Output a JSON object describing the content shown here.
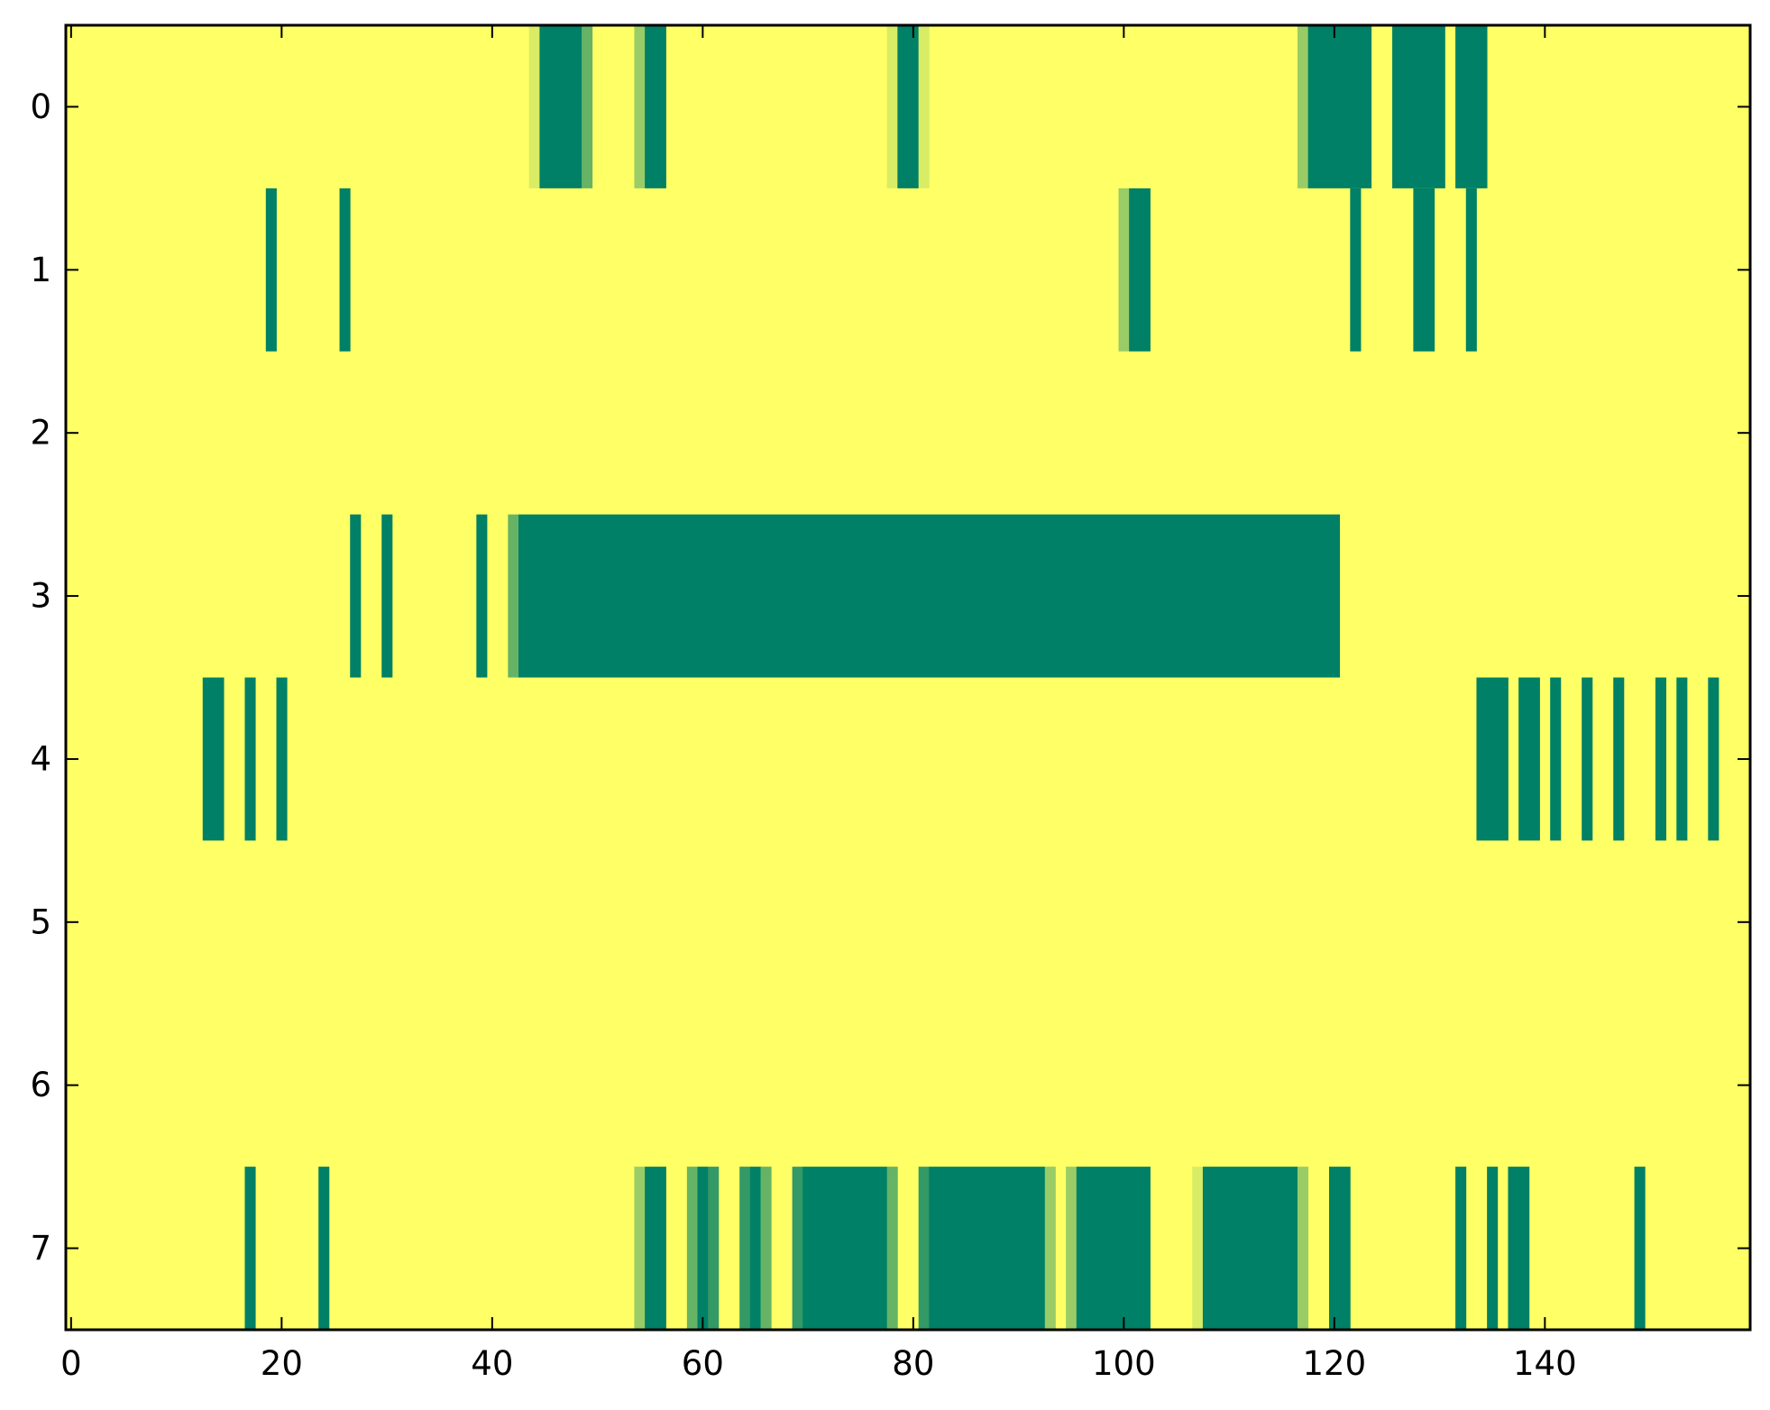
{
  "chart_data": {
    "type": "heatmap",
    "title": "",
    "xlabel": "",
    "ylabel": "",
    "xlim": [
      -0.5,
      159.5
    ],
    "ylim": [
      7.5,
      -0.5
    ],
    "x_ticks": [
      0,
      20,
      40,
      60,
      80,
      100,
      120,
      140
    ],
    "x_tick_labels": [
      "0",
      "20",
      "40",
      "60",
      "80",
      "100",
      "120",
      "140"
    ],
    "y_ticks": [
      0,
      1,
      2,
      3,
      4,
      5,
      6,
      7
    ],
    "y_tick_labels": [
      "0",
      "1",
      "2",
      "3",
      "4",
      "5",
      "6",
      "7"
    ],
    "grid": false,
    "background_color": "#ffff66",
    "colorscale": [
      "#ffff66",
      "#008066"
    ],
    "columns": 160,
    "rows": [
      {
        "row": 0,
        "cells": [
          {
            "start": 44,
            "end": 44,
            "value": 0.15
          },
          {
            "start": 45,
            "end": 48,
            "value": 1
          },
          {
            "start": 49,
            "end": 49,
            "value": 0.6
          },
          {
            "start": 54,
            "end": 54,
            "value": 0.4
          },
          {
            "start": 55,
            "end": 56,
            "value": 1
          },
          {
            "start": 78,
            "end": 78,
            "value": 0.15
          },
          {
            "start": 79,
            "end": 80,
            "value": 1
          },
          {
            "start": 81,
            "end": 81,
            "value": 0.15
          },
          {
            "start": 117,
            "end": 117,
            "value": 0.4
          },
          {
            "start": 118,
            "end": 123,
            "value": 1
          },
          {
            "start": 126,
            "end": 130,
            "value": 1
          },
          {
            "start": 132,
            "end": 134,
            "value": 1
          }
        ]
      },
      {
        "row": 1,
        "cells": [
          {
            "start": 19,
            "end": 19,
            "value": 1
          },
          {
            "start": 26,
            "end": 26,
            "value": 1
          },
          {
            "start": 100,
            "end": 100,
            "value": 0.4
          },
          {
            "start": 101,
            "end": 102,
            "value": 1
          },
          {
            "start": 122,
            "end": 122,
            "value": 1
          },
          {
            "start": 128,
            "end": 129,
            "value": 1
          },
          {
            "start": 133,
            "end": 133,
            "value": 1
          }
        ]
      },
      {
        "row": 2,
        "cells": []
      },
      {
        "row": 3,
        "cells": [
          {
            "start": 27,
            "end": 27,
            "value": 1
          },
          {
            "start": 30,
            "end": 30,
            "value": 1
          },
          {
            "start": 39,
            "end": 39,
            "value": 1
          },
          {
            "start": 42,
            "end": 42,
            "value": 0.6
          },
          {
            "start": 43,
            "end": 120,
            "value": 1
          }
        ]
      },
      {
        "row": 4,
        "cells": [
          {
            "start": 13,
            "end": 14,
            "value": 1
          },
          {
            "start": 17,
            "end": 17,
            "value": 1
          },
          {
            "start": 20,
            "end": 20,
            "value": 1
          },
          {
            "start": 134,
            "end": 136,
            "value": 1
          },
          {
            "start": 138,
            "end": 139,
            "value": 1
          },
          {
            "start": 141,
            "end": 141,
            "value": 1
          },
          {
            "start": 144,
            "end": 144,
            "value": 1
          },
          {
            "start": 147,
            "end": 147,
            "value": 1
          },
          {
            "start": 151,
            "end": 151,
            "value": 1
          },
          {
            "start": 153,
            "end": 153,
            "value": 1
          },
          {
            "start": 156,
            "end": 156,
            "value": 1
          }
        ]
      },
      {
        "row": 5,
        "cells": []
      },
      {
        "row": 6,
        "cells": []
      },
      {
        "row": 7,
        "cells": [
          {
            "start": 17,
            "end": 17,
            "value": 1
          },
          {
            "start": 24,
            "end": 24,
            "value": 1
          },
          {
            "start": 54,
            "end": 54,
            "value": 0.4
          },
          {
            "start": 55,
            "end": 56,
            "value": 1
          },
          {
            "start": 59,
            "end": 59,
            "value": 0.6
          },
          {
            "start": 60,
            "end": 60,
            "value": 1
          },
          {
            "start": 61,
            "end": 61,
            "value": 0.8
          },
          {
            "start": 64,
            "end": 64,
            "value": 0.8
          },
          {
            "start": 65,
            "end": 65,
            "value": 1
          },
          {
            "start": 66,
            "end": 66,
            "value": 0.6
          },
          {
            "start": 69,
            "end": 69,
            "value": 0.8
          },
          {
            "start": 70,
            "end": 77,
            "value": 1
          },
          {
            "start": 78,
            "end": 78,
            "value": 0.6
          },
          {
            "start": 81,
            "end": 81,
            "value": 0.8
          },
          {
            "start": 82,
            "end": 92,
            "value": 1
          },
          {
            "start": 93,
            "end": 93,
            "value": 0.4
          },
          {
            "start": 95,
            "end": 95,
            "value": 0.4
          },
          {
            "start": 96,
            "end": 102,
            "value": 1
          },
          {
            "start": 107,
            "end": 107,
            "value": 0.15
          },
          {
            "start": 108,
            "end": 116,
            "value": 1
          },
          {
            "start": 117,
            "end": 117,
            "value": 0.4
          },
          {
            "start": 120,
            "end": 121,
            "value": 1
          },
          {
            "start": 132,
            "end": 132,
            "value": 1
          },
          {
            "start": 135,
            "end": 135,
            "value": 1
          },
          {
            "start": 137,
            "end": 138,
            "value": 1
          },
          {
            "start": 149,
            "end": 149,
            "value": 1
          }
        ]
      }
    ]
  }
}
